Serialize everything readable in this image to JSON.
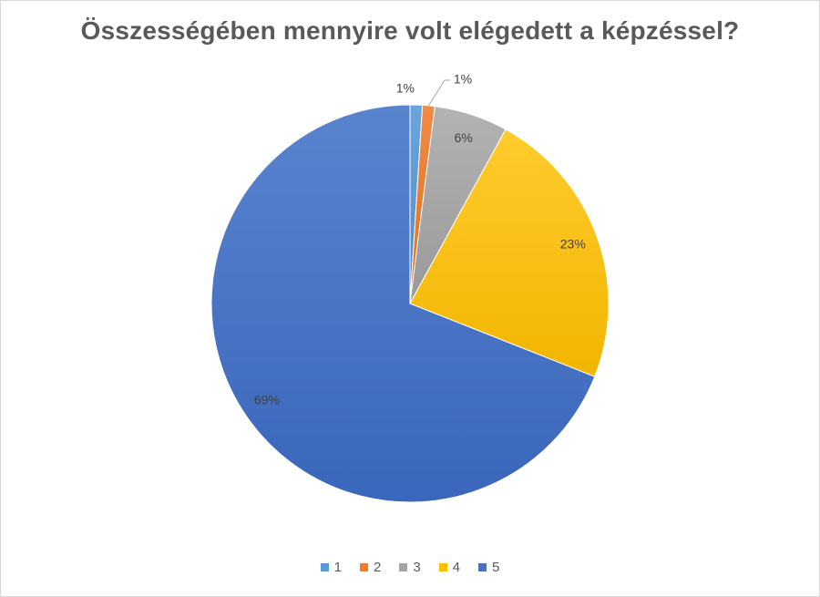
{
  "chart_data": {
    "type": "pie",
    "title": "Összességében mennyire volt elégedett a képzéssel?",
    "categories": [
      "1",
      "2",
      "3",
      "4",
      "5"
    ],
    "values": [
      1,
      1,
      6,
      23,
      69
    ],
    "data_labels": [
      "1%",
      "1%",
      "6%",
      "23%",
      "69%"
    ],
    "colors": [
      "#5b9bd5",
      "#ed7d31",
      "#a5a5a5",
      "#ffc000",
      "#4472c4"
    ],
    "legend_position": "bottom",
    "start_angle": "top, clockwise"
  }
}
